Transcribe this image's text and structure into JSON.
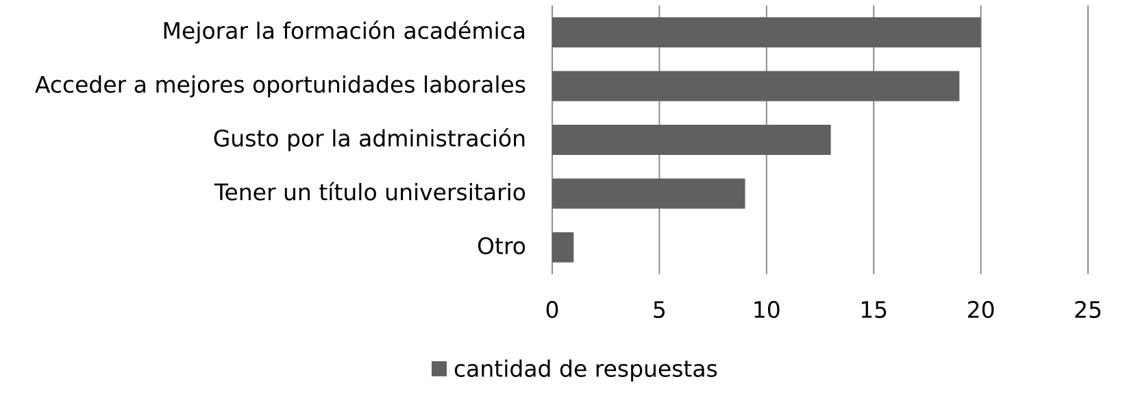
{
  "chart_data": {
    "type": "bar",
    "orientation": "horizontal",
    "categories": [
      "Mejorar la formación académica",
      "Acceder a mejores oportunidades laborales",
      "Gusto por la administración",
      "Tener un título universitario",
      "Otro"
    ],
    "series": [
      {
        "name": "cantidad de respuestas",
        "color": "#606060",
        "values": [
          20,
          19,
          13,
          9,
          1
        ]
      }
    ],
    "xlim": [
      0,
      25
    ],
    "xticks": [
      0,
      5,
      10,
      15,
      20,
      25
    ],
    "grid": true,
    "legend": "bottom"
  }
}
